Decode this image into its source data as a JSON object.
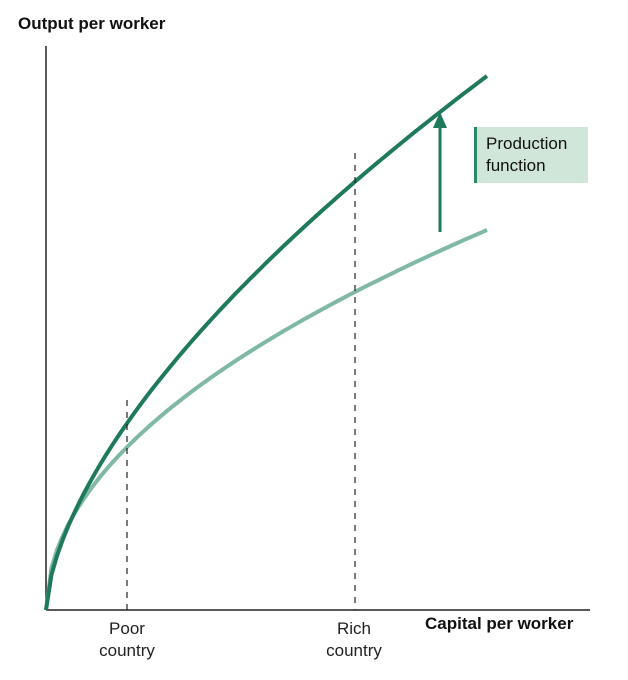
{
  "axes": {
    "y_label": "Output per worker",
    "x_label": "Capital per worker"
  },
  "markers": [
    {
      "line1": "Poor",
      "line2": "country"
    },
    {
      "line1": "Rich",
      "line2": "country"
    }
  ],
  "annotation": {
    "line1": "Production",
    "line2": "function"
  },
  "colors": {
    "upper_curve": "#1f7a5c",
    "lower_curve": "#7fb8a4",
    "axis": "#222222",
    "annotation_fill": "#cfe6d8"
  }
}
